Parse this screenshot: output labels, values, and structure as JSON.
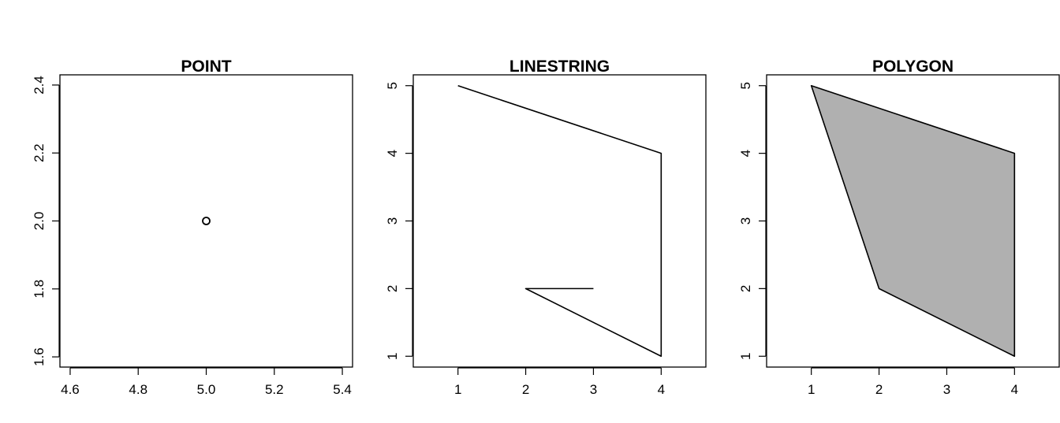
{
  "chart_data": [
    {
      "type": "scatter",
      "title": "POINT",
      "xlim": [
        4.57,
        5.43
      ],
      "ylim": [
        1.57,
        2.43
      ],
      "xticks": [
        4.6,
        4.8,
        5.0,
        5.2,
        5.4
      ],
      "xtick_labels": [
        "4.6",
        "4.8",
        "5.0",
        "5.2",
        "5.4"
      ],
      "yticks": [
        1.6,
        1.8,
        2.0,
        2.2,
        2.4
      ],
      "ytick_labels": [
        "1.6",
        "1.8",
        "2.0",
        "2.2",
        "2.4"
      ],
      "points": [
        {
          "x": 5.0,
          "y": 2.0
        }
      ]
    },
    {
      "type": "line",
      "title": "LINESTRING",
      "xlim": [
        0.34,
        4.66
      ],
      "ylim": [
        0.84,
        5.16
      ],
      "xticks": [
        1,
        2,
        3,
        4
      ],
      "xtick_labels": [
        "1",
        "2",
        "3",
        "4"
      ],
      "yticks": [
        1,
        2,
        3,
        4,
        5
      ],
      "ytick_labels": [
        "1",
        "2",
        "3",
        "4",
        "5"
      ],
      "points": [
        {
          "x": 1,
          "y": 5
        },
        {
          "x": 4,
          "y": 4
        },
        {
          "x": 4,
          "y": 1
        },
        {
          "x": 2,
          "y": 2
        },
        {
          "x": 3,
          "y": 2
        }
      ]
    },
    {
      "type": "area",
      "title": "POLYGON",
      "xlim": [
        0.34,
        4.66
      ],
      "ylim": [
        0.84,
        5.16
      ],
      "xticks": [
        1,
        2,
        3,
        4
      ],
      "xtick_labels": [
        "1",
        "2",
        "3",
        "4"
      ],
      "yticks": [
        1,
        2,
        3,
        4,
        5
      ],
      "ytick_labels": [
        "1",
        "2",
        "3",
        "4",
        "5"
      ],
      "fill_color": "#b0b0b0",
      "points": [
        {
          "x": 1,
          "y": 5
        },
        {
          "x": 4,
          "y": 4
        },
        {
          "x": 4,
          "y": 1
        },
        {
          "x": 2,
          "y": 2
        },
        {
          "x": 1,
          "y": 5
        }
      ]
    }
  ]
}
